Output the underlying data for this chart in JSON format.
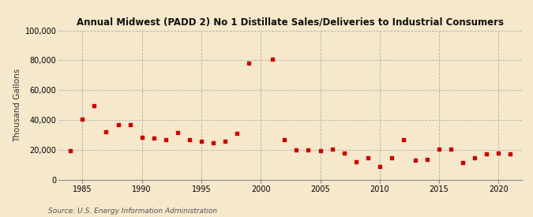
{
  "title": "Annual Midwest (PADD 2) No 1 Distillate Sales/Deliveries to Industrial Consumers",
  "ylabel": "Thousand Gallons",
  "source": "Source: U.S. Energy Information Administration",
  "background_color": "#f5e8cb",
  "plot_bg_color": "#f5e8cb",
  "marker_color": "#cc0000",
  "years": [
    1984,
    1985,
    1986,
    1987,
    1988,
    1989,
    1990,
    1991,
    1992,
    1993,
    1994,
    1995,
    1996,
    1997,
    1998,
    1999,
    2001,
    2002,
    2003,
    2004,
    2005,
    2006,
    2007,
    2008,
    2009,
    2010,
    2011,
    2012,
    2013,
    2014,
    2015,
    2016,
    2017,
    2018,
    2019,
    2020,
    2021
  ],
  "values": [
    19500,
    40500,
    49500,
    32500,
    37000,
    37000,
    28500,
    28000,
    27000,
    32000,
    27000,
    26000,
    25000,
    26000,
    31000,
    78000,
    81000,
    27000,
    20000,
    20000,
    19500,
    20500,
    18000,
    12500,
    15000,
    9000,
    15000,
    27000,
    13500,
    14000,
    20500,
    20500,
    11500,
    15000,
    17500,
    18000,
    17500
  ],
  "xlim": [
    1983,
    2022
  ],
  "ylim": [
    0,
    100000
  ],
  "yticks": [
    0,
    20000,
    40000,
    60000,
    80000,
    100000
  ],
  "xticks": [
    1985,
    1990,
    1995,
    2000,
    2005,
    2010,
    2015,
    2020
  ]
}
